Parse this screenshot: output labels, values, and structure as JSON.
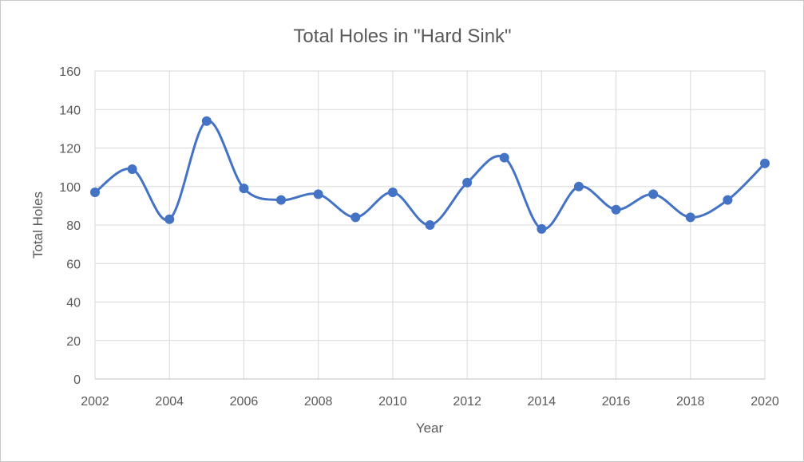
{
  "chart_data": {
    "type": "line",
    "title": "Total Holes in \"Hard Sink\"",
    "xlabel": "Year",
    "ylabel": "Total Holes",
    "xlim": [
      2002,
      2020
    ],
    "ylim": [
      0,
      160
    ],
    "x_ticks": [
      2002,
      2004,
      2006,
      2008,
      2010,
      2012,
      2014,
      2016,
      2018,
      2020
    ],
    "y_ticks": [
      0,
      20,
      40,
      60,
      80,
      100,
      120,
      140,
      160
    ],
    "grid": true,
    "smooth": true,
    "legend": "none",
    "color": "#4472c4",
    "series": [
      {
        "x": [
          2002,
          2003,
          2004,
          2005,
          2006,
          2007,
          2008,
          2009,
          2010,
          2011,
          2012,
          2013,
          2014,
          2015,
          2016,
          2017,
          2018,
          2019,
          2020
        ],
        "values": [
          97,
          109,
          83,
          134,
          99,
          93,
          96,
          84,
          97,
          80,
          102,
          115,
          78,
          100,
          88,
          96,
          84,
          93,
          112
        ]
      }
    ]
  }
}
